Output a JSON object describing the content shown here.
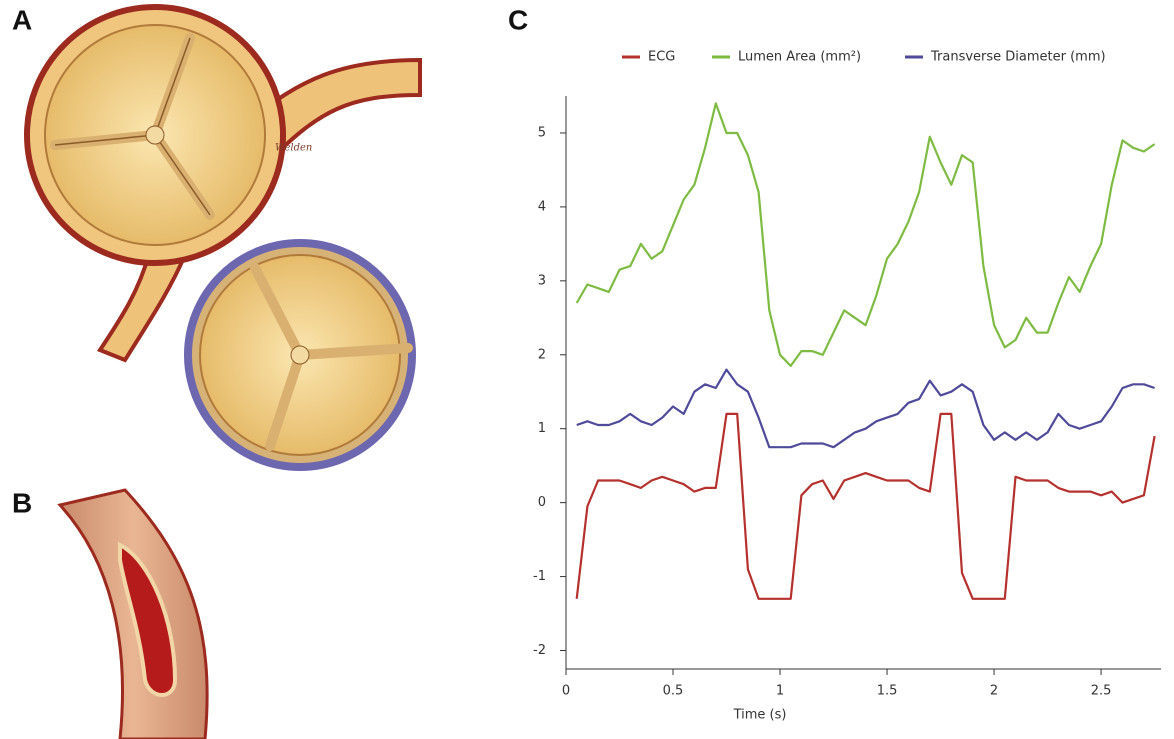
{
  "panel_labels": [
    "A",
    "B",
    "C"
  ],
  "signature": "Welden",
  "chart_data": {
    "type": "line",
    "x_label": "Time (s)",
    "x": [
      0.05,
      0.1,
      0.15,
      0.2,
      0.25,
      0.3,
      0.35,
      0.4,
      0.45,
      0.5,
      0.55,
      0.6,
      0.65,
      0.7,
      0.75,
      0.8,
      0.85,
      0.9,
      0.95,
      1.0,
      1.05,
      1.1,
      1.15,
      1.2,
      1.25,
      1.3,
      1.35,
      1.4,
      1.45,
      1.5,
      1.55,
      1.6,
      1.65,
      1.7,
      1.75,
      1.8,
      1.85,
      1.9,
      1.95,
      2.0,
      2.05,
      2.1,
      2.15,
      2.2,
      2.25,
      2.3,
      2.35,
      2.4,
      2.45,
      2.5,
      2.55,
      2.6,
      2.65,
      2.7,
      2.75
    ],
    "series": [
      {
        "name": "ECG",
        "color": "#b5312e",
        "values": [
          -1.3,
          -0.05,
          0.3,
          0.3,
          0.3,
          0.25,
          0.2,
          0.3,
          0.35,
          0.3,
          0.25,
          0.15,
          0.2,
          0.2,
          1.2,
          1.2,
          -0.9,
          -1.3,
          -1.3,
          -1.3,
          -1.3,
          0.1,
          0.25,
          0.3,
          0.05,
          0.3,
          0.35,
          0.4,
          0.35,
          0.3,
          0.3,
          0.3,
          0.2,
          0.15,
          1.2,
          1.2,
          -0.95,
          -1.3,
          -1.3,
          -1.3,
          -1.3,
          0.35,
          0.3,
          0.3,
          0.3,
          0.2,
          0.15,
          0.15,
          0.15,
          0.1,
          0.15,
          0.0,
          0.05,
          0.1,
          0.9
        ]
      },
      {
        "name": "Lumen Area (mm²)",
        "color": "#7dbb42",
        "values": [
          2.7,
          2.95,
          2.9,
          2.85,
          3.15,
          3.2,
          3.5,
          3.3,
          3.4,
          3.75,
          4.1,
          4.3,
          4.8,
          5.4,
          5.0,
          5.0,
          4.7,
          4.2,
          2.6,
          2.0,
          1.85,
          2.05,
          2.05,
          2.0,
          2.3,
          2.6,
          2.5,
          2.4,
          2.8,
          3.3,
          3.5,
          3.8,
          4.2,
          4.95,
          4.6,
          4.3,
          4.7,
          4.6,
          3.2,
          2.4,
          2.1,
          2.2,
          2.5,
          2.3,
          2.3,
          2.7,
          3.05,
          2.85,
          3.2,
          3.5,
          4.3,
          4.9,
          4.8,
          4.75,
          4.85
        ]
      },
      {
        "name": "Transverse Diameter (mm)",
        "color": "#4f4a9a",
        "values": [
          1.05,
          1.1,
          1.05,
          1.05,
          1.1,
          1.2,
          1.1,
          1.05,
          1.15,
          1.3,
          1.2,
          1.5,
          1.6,
          1.55,
          1.8,
          1.6,
          1.5,
          1.15,
          0.75,
          0.75,
          0.75,
          0.8,
          0.8,
          0.8,
          0.75,
          0.85,
          0.95,
          1.0,
          1.1,
          1.15,
          1.2,
          1.35,
          1.4,
          1.65,
          1.45,
          1.5,
          1.6,
          1.5,
          1.05,
          0.85,
          0.95,
          0.85,
          0.95,
          0.85,
          0.95,
          1.2,
          1.05,
          1.0,
          1.05,
          1.1,
          1.3,
          1.55,
          1.6,
          1.6,
          1.55
        ]
      }
    ],
    "xlim": [
      0,
      2.78
    ],
    "ylim": [
      -2.25,
      5.5
    ],
    "xticks": [
      0,
      0.5,
      1,
      1.5,
      2,
      2.5
    ],
    "yticks": [
      -2,
      -1,
      0,
      1,
      2,
      3,
      4,
      5
    ],
    "grid": false,
    "legend": "top"
  }
}
